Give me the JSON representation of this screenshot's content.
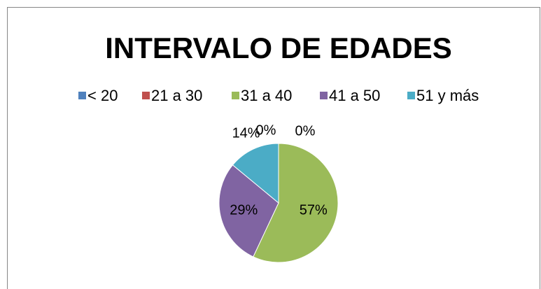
{
  "chart_data": {
    "type": "pie",
    "title": "INTERVALO DE EDADES",
    "categories": [
      "< 20",
      "21 a 30",
      "31 a 40",
      "41 a 50",
      "51 y más"
    ],
    "values": [
      0,
      0,
      57,
      29,
      14
    ],
    "value_labels": [
      "0%",
      "0%",
      "57%",
      "29%",
      "14%"
    ],
    "colors": [
      "#4f81bd",
      "#c0504d",
      "#9bbb59",
      "#8064a2",
      "#4bacc6"
    ],
    "legend": "top"
  }
}
